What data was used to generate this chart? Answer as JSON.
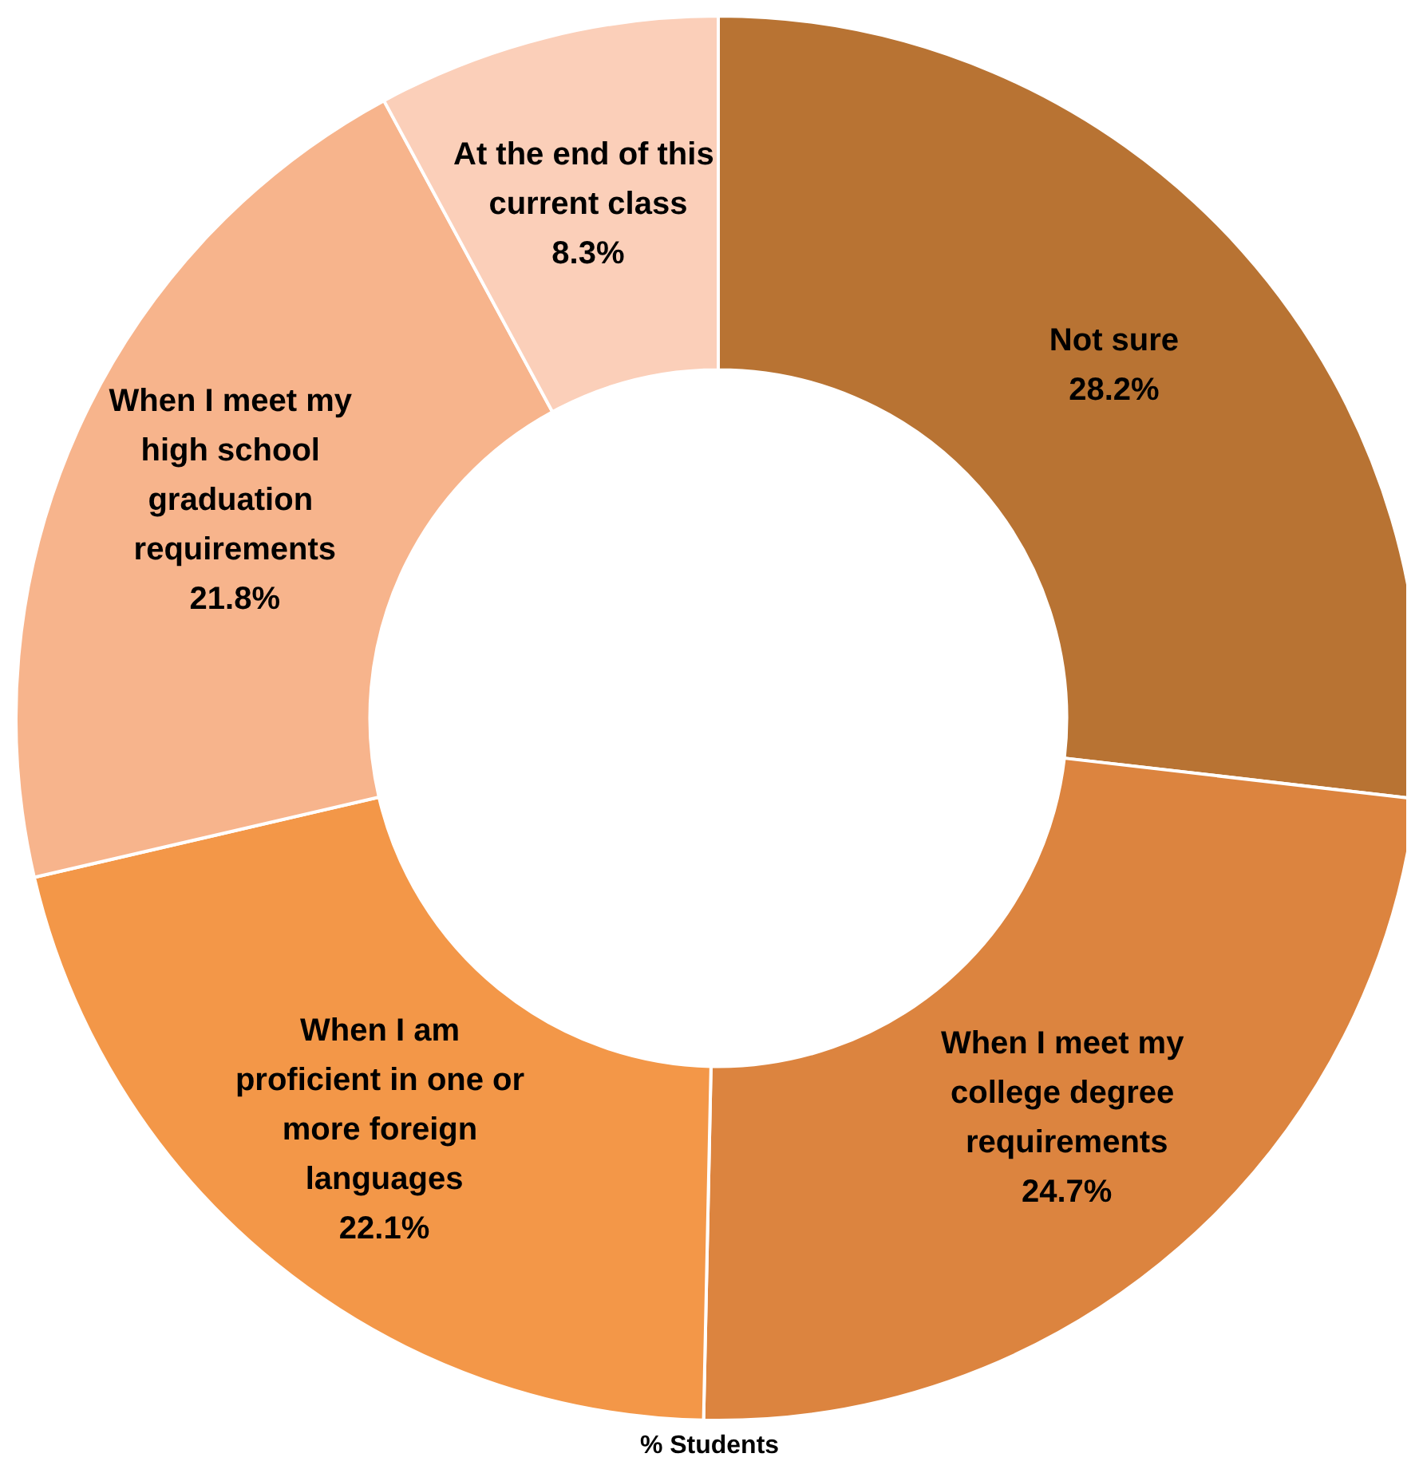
{
  "chart_data": {
    "type": "donut",
    "categories": [
      "Not sure",
      "When I meet my college degree requirements",
      "When I am proficient in one or more foreign languages",
      "When I meet my high school graduation requirements",
      "At the end of this current class"
    ],
    "values": [
      28.2,
      24.7,
      22.1,
      21.8,
      8.3
    ],
    "colors": [
      "#b87333",
      "#dc843f",
      "#f39748",
      "#f7b48c",
      "#fbcfb9"
    ],
    "value_labels": [
      "28.2%",
      "24.7%",
      "22.1%",
      "21.8%",
      "8.3%"
    ],
    "legend": false,
    "annotations": [
      "% Students"
    ]
  }
}
